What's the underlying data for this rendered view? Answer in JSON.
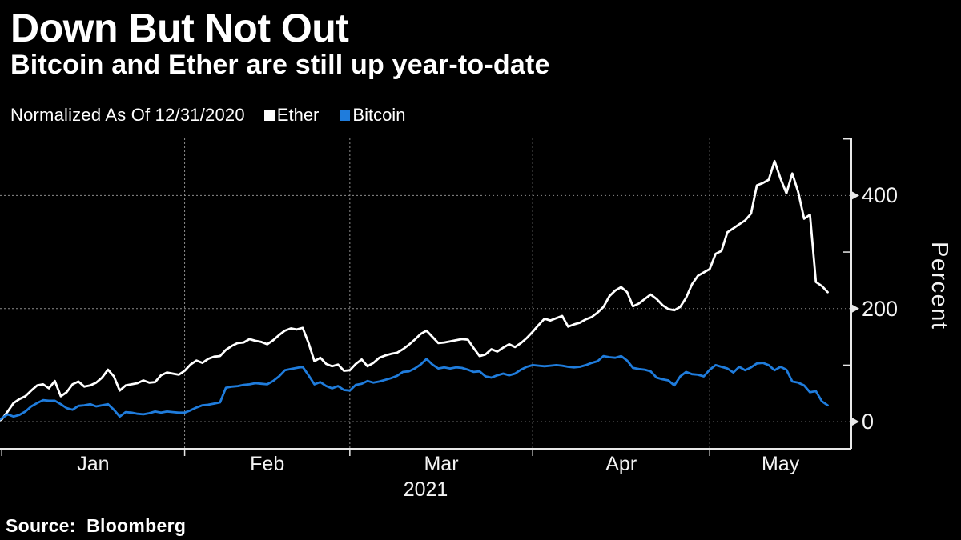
{
  "header": {
    "title": "Down But Not Out",
    "subtitle": "Bitcoin and Ether are still up year-to-date"
  },
  "legend": {
    "note": "Normalized As Of 12/31/2020",
    "series": [
      {
        "label": "Ether",
        "color": "#ffffff"
      },
      {
        "label": "Bitcoin",
        "color": "#1f7cdc"
      }
    ]
  },
  "footer": {
    "source": "Source:  Bloomberg"
  },
  "chart_data": {
    "type": "line",
    "title": "Down But Not Out",
    "subtitle": "Bitcoin and Ether are still up year-to-date",
    "note": "Normalized As Of 12/31/2020",
    "ylabel": "Percent",
    "x_unit": "days since 2020-12-31",
    "xlim": [
      0.7,
      145
    ],
    "ylim": [
      -48,
      501
    ],
    "y_ticks_labeled": [
      0,
      200,
      400
    ],
    "y_ticks_minor": [
      100,
      300,
      500
    ],
    "x_month_ticks": [
      {
        "label": "Jan",
        "day": 1
      },
      {
        "label": "Feb",
        "day": 32
      },
      {
        "label": "Mar",
        "day": 60
      },
      {
        "label": "Apr",
        "day": 91
      },
      {
        "label": "May",
        "day": 121
      }
    ],
    "x_gridline_days": [
      32,
      60,
      91,
      121
    ],
    "year_label": "2021",
    "grid": "dashed",
    "legend_position": "top",
    "axis_color": "#e8e8e8",
    "grid_color": "#8c8c8c",
    "series": [
      {
        "name": "Ether",
        "color": "#ffffff",
        "points": [
          [
            0,
            0
          ],
          [
            1,
            4
          ],
          [
            2,
            18
          ],
          [
            3,
            33
          ],
          [
            4,
            40
          ],
          [
            5,
            45
          ],
          [
            6,
            55
          ],
          [
            7,
            64
          ],
          [
            8,
            66
          ],
          [
            9,
            59
          ],
          [
            10,
            72
          ],
          [
            11,
            45
          ],
          [
            12,
            52
          ],
          [
            13,
            66
          ],
          [
            14,
            71
          ],
          [
            15,
            62
          ],
          [
            16,
            64
          ],
          [
            17,
            69
          ],
          [
            18,
            78
          ],
          [
            19,
            92
          ],
          [
            20,
            80
          ],
          [
            21,
            55
          ],
          [
            22,
            64
          ],
          [
            23,
            66
          ],
          [
            24,
            68
          ],
          [
            25,
            73
          ],
          [
            26,
            69
          ],
          [
            27,
            70
          ],
          [
            28,
            82
          ],
          [
            29,
            87
          ],
          [
            30,
            85
          ],
          [
            31,
            83
          ],
          [
            32,
            90
          ],
          [
            33,
            101
          ],
          [
            34,
            108
          ],
          [
            35,
            104
          ],
          [
            36,
            111
          ],
          [
            37,
            115
          ],
          [
            38,
            116
          ],
          [
            39,
            127
          ],
          [
            40,
            134
          ],
          [
            41,
            139
          ],
          [
            42,
            140
          ],
          [
            43,
            146
          ],
          [
            44,
            143
          ],
          [
            45,
            141
          ],
          [
            46,
            137
          ],
          [
            47,
            144
          ],
          [
            48,
            153
          ],
          [
            49,
            161
          ],
          [
            50,
            165
          ],
          [
            51,
            163
          ],
          [
            52,
            166
          ],
          [
            53,
            139
          ],
          [
            54,
            107
          ],
          [
            55,
            113
          ],
          [
            56,
            102
          ],
          [
            57,
            98
          ],
          [
            58,
            101
          ],
          [
            59,
            90
          ],
          [
            60,
            91
          ],
          [
            61,
            102
          ],
          [
            62,
            110
          ],
          [
            63,
            98
          ],
          [
            64,
            104
          ],
          [
            65,
            113
          ],
          [
            66,
            117
          ],
          [
            67,
            120
          ],
          [
            68,
            122
          ],
          [
            69,
            128
          ],
          [
            70,
            136
          ],
          [
            71,
            145
          ],
          [
            72,
            155
          ],
          [
            73,
            161
          ],
          [
            74,
            150
          ],
          [
            75,
            139
          ],
          [
            76,
            140
          ],
          [
            77,
            142
          ],
          [
            78,
            144
          ],
          [
            79,
            146
          ],
          [
            80,
            145
          ],
          [
            81,
            130
          ],
          [
            82,
            116
          ],
          [
            83,
            119
          ],
          [
            84,
            128
          ],
          [
            85,
            124
          ],
          [
            86,
            131
          ],
          [
            87,
            137
          ],
          [
            88,
            132
          ],
          [
            89,
            139
          ],
          [
            90,
            148
          ],
          [
            91,
            159
          ],
          [
            92,
            171
          ],
          [
            93,
            182
          ],
          [
            94,
            179
          ],
          [
            95,
            183
          ],
          [
            96,
            187
          ],
          [
            97,
            168
          ],
          [
            98,
            172
          ],
          [
            99,
            175
          ],
          [
            100,
            181
          ],
          [
            101,
            185
          ],
          [
            102,
            193
          ],
          [
            103,
            203
          ],
          [
            104,
            222
          ],
          [
            105,
            232
          ],
          [
            106,
            238
          ],
          [
            107,
            229
          ],
          [
            108,
            204
          ],
          [
            109,
            209
          ],
          [
            110,
            217
          ],
          [
            111,
            225
          ],
          [
            112,
            217
          ],
          [
            113,
            206
          ],
          [
            114,
            199
          ],
          [
            115,
            197
          ],
          [
            116,
            203
          ],
          [
            117,
            219
          ],
          [
            118,
            243
          ],
          [
            119,
            258
          ],
          [
            120,
            264
          ],
          [
            121,
            270
          ],
          [
            122,
            297
          ],
          [
            123,
            302
          ],
          [
            124,
            335
          ],
          [
            125,
            342
          ],
          [
            126,
            349
          ],
          [
            127,
            356
          ],
          [
            128,
            368
          ],
          [
            129,
            418
          ],
          [
            130,
            422
          ],
          [
            131,
            428
          ],
          [
            132,
            461
          ],
          [
            133,
            430
          ],
          [
            134,
            404
          ],
          [
            135,
            439
          ],
          [
            136,
            406
          ],
          [
            137,
            359
          ],
          [
            138,
            366
          ],
          [
            139,
            247
          ],
          [
            140,
            240
          ],
          [
            141,
            229
          ]
        ]
      },
      {
        "name": "Bitcoin",
        "color": "#1f7cdc",
        "points": [
          [
            0,
            0
          ],
          [
            1,
            6
          ],
          [
            2,
            13
          ],
          [
            3,
            9
          ],
          [
            4,
            12
          ],
          [
            5,
            18
          ],
          [
            6,
            27
          ],
          [
            7,
            33
          ],
          [
            8,
            38
          ],
          [
            9,
            37
          ],
          [
            10,
            37
          ],
          [
            11,
            31
          ],
          [
            12,
            24
          ],
          [
            13,
            21
          ],
          [
            14,
            28
          ],
          [
            15,
            29
          ],
          [
            16,
            31
          ],
          [
            17,
            27
          ],
          [
            18,
            29
          ],
          [
            19,
            31
          ],
          [
            20,
            21
          ],
          [
            21,
            9
          ],
          [
            22,
            17
          ],
          [
            23,
            16
          ],
          [
            24,
            14
          ],
          [
            25,
            13
          ],
          [
            26,
            15
          ],
          [
            27,
            18
          ],
          [
            28,
            16
          ],
          [
            29,
            18
          ],
          [
            30,
            17
          ],
          [
            31,
            16
          ],
          [
            32,
            16
          ],
          [
            33,
            20
          ],
          [
            34,
            25
          ],
          [
            35,
            29
          ],
          [
            36,
            30
          ],
          [
            37,
            32
          ],
          [
            38,
            34
          ],
          [
            39,
            60
          ],
          [
            40,
            62
          ],
          [
            41,
            63
          ],
          [
            42,
            65
          ],
          [
            43,
            66
          ],
          [
            44,
            68
          ],
          [
            45,
            67
          ],
          [
            46,
            66
          ],
          [
            47,
            72
          ],
          [
            48,
            80
          ],
          [
            49,
            91
          ],
          [
            50,
            93
          ],
          [
            51,
            95
          ],
          [
            52,
            97
          ],
          [
            53,
            82
          ],
          [
            54,
            66
          ],
          [
            55,
            70
          ],
          [
            56,
            63
          ],
          [
            57,
            59
          ],
          [
            58,
            63
          ],
          [
            59,
            56
          ],
          [
            60,
            55
          ],
          [
            61,
            65
          ],
          [
            62,
            67
          ],
          [
            63,
            72
          ],
          [
            64,
            69
          ],
          [
            65,
            71
          ],
          [
            66,
            74
          ],
          [
            67,
            77
          ],
          [
            68,
            81
          ],
          [
            69,
            88
          ],
          [
            70,
            89
          ],
          [
            71,
            94
          ],
          [
            72,
            101
          ],
          [
            73,
            111
          ],
          [
            74,
            101
          ],
          [
            75,
            94
          ],
          [
            76,
            96
          ],
          [
            77,
            94
          ],
          [
            78,
            96
          ],
          [
            79,
            95
          ],
          [
            80,
            92
          ],
          [
            81,
            88
          ],
          [
            82,
            89
          ],
          [
            83,
            80
          ],
          [
            84,
            78
          ],
          [
            85,
            82
          ],
          [
            86,
            85
          ],
          [
            87,
            82
          ],
          [
            88,
            85
          ],
          [
            89,
            92
          ],
          [
            90,
            97
          ],
          [
            91,
            100
          ],
          [
            92,
            99
          ],
          [
            93,
            98
          ],
          [
            94,
            99
          ],
          [
            95,
            100
          ],
          [
            96,
            99
          ],
          [
            97,
            97
          ],
          [
            98,
            96
          ],
          [
            99,
            97
          ],
          [
            100,
            100
          ],
          [
            101,
            104
          ],
          [
            102,
            107
          ],
          [
            103,
            116
          ],
          [
            104,
            114
          ],
          [
            105,
            113
          ],
          [
            106,
            116
          ],
          [
            107,
            108
          ],
          [
            108,
            95
          ],
          [
            109,
            93
          ],
          [
            110,
            92
          ],
          [
            111,
            89
          ],
          [
            112,
            78
          ],
          [
            113,
            75
          ],
          [
            114,
            73
          ],
          [
            115,
            64
          ],
          [
            116,
            80
          ],
          [
            117,
            88
          ],
          [
            118,
            84
          ],
          [
            119,
            83
          ],
          [
            120,
            80
          ],
          [
            121,
            92
          ],
          [
            122,
            100
          ],
          [
            123,
            97
          ],
          [
            124,
            94
          ],
          [
            125,
            87
          ],
          [
            126,
            97
          ],
          [
            127,
            91
          ],
          [
            128,
            96
          ],
          [
            129,
            103
          ],
          [
            130,
            104
          ],
          [
            131,
            100
          ],
          [
            132,
            91
          ],
          [
            133,
            97
          ],
          [
            134,
            92
          ],
          [
            135,
            71
          ],
          [
            136,
            69
          ],
          [
            137,
            64
          ],
          [
            138,
            52
          ],
          [
            139,
            54
          ],
          [
            140,
            36
          ],
          [
            141,
            29
          ]
        ]
      }
    ]
  }
}
